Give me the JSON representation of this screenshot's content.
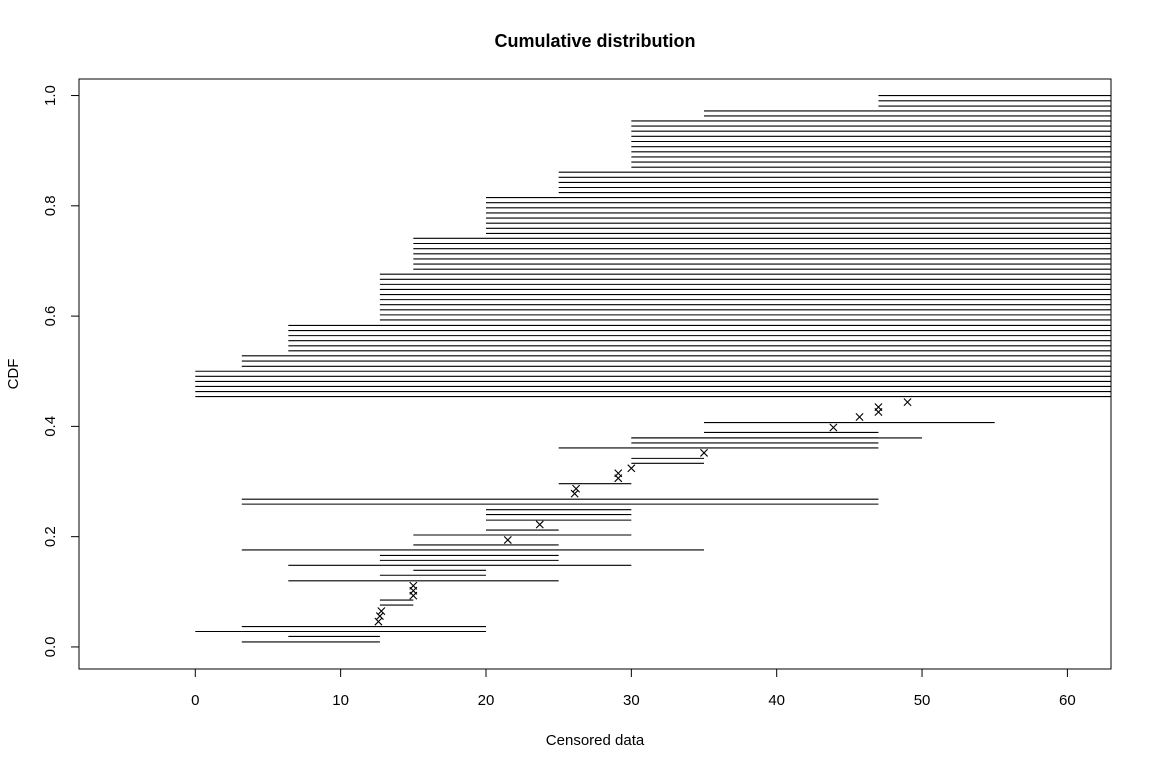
{
  "chart_data": {
    "type": "scatter",
    "title": "Cumulative distribution",
    "xlabel": "Censored data",
    "ylabel": "CDF",
    "xlim": [
      -8,
      63
    ],
    "ylim": [
      -0.04,
      1.03
    ],
    "x_ticks": [
      0,
      10,
      20,
      30,
      40,
      50,
      60
    ],
    "y_ticks": [
      0.0,
      0.2,
      0.4,
      0.6,
      0.8,
      1.0
    ],
    "x_tick_labels": [
      "0",
      "10",
      "20",
      "30",
      "40",
      "50",
      "60"
    ],
    "y_tick_labels": [
      "0.0",
      "0.2",
      "0.4",
      "0.6",
      "0.8",
      "1.0"
    ],
    "grid": false,
    "interval_segments": [
      {
        "x1": 3.2,
        "x2": 12.7,
        "y": 0.009
      },
      {
        "x1": 6.4,
        "x2": 12.7,
        "y": 0.019
      },
      {
        "x1": 0.0,
        "x2": 20.0,
        "y": 0.028
      },
      {
        "x1": 3.2,
        "x2": 20.0,
        "y": 0.037
      },
      {
        "x1": 12.7,
        "x2": 15.0,
        "y": 0.076
      },
      {
        "x1": 12.7,
        "x2": 15.0,
        "y": 0.085
      },
      {
        "x1": 6.4,
        "x2": 25.0,
        "y": 0.12
      },
      {
        "x1": 12.7,
        "x2": 20.0,
        "y": 0.13
      },
      {
        "x1": 15.0,
        "x2": 20.0,
        "y": 0.139
      },
      {
        "x1": 6.4,
        "x2": 30.0,
        "y": 0.148
      },
      {
        "x1": 12.7,
        "x2": 25.0,
        "y": 0.157
      },
      {
        "x1": 12.7,
        "x2": 25.0,
        "y": 0.166
      },
      {
        "x1": 3.2,
        "x2": 35.0,
        "y": 0.176
      },
      {
        "x1": 15.0,
        "x2": 25.0,
        "y": 0.185
      },
      {
        "x1": 15.0,
        "x2": 30.0,
        "y": 0.203
      },
      {
        "x1": 20.0,
        "x2": 25.0,
        "y": 0.212
      },
      {
        "x1": 20.0,
        "x2": 30.0,
        "y": 0.23
      },
      {
        "x1": 20.0,
        "x2": 30.0,
        "y": 0.24
      },
      {
        "x1": 20.0,
        "x2": 30.0,
        "y": 0.249
      },
      {
        "x1": 3.2,
        "x2": 47.0,
        "y": 0.259
      },
      {
        "x1": 3.2,
        "x2": 47.0,
        "y": 0.268
      },
      {
        "x1": 25.0,
        "x2": 30.0,
        "y": 0.296
      },
      {
        "x1": 30.0,
        "x2": 35.0,
        "y": 0.333
      },
      {
        "x1": 30.0,
        "x2": 35.0,
        "y": 0.342
      },
      {
        "x1": 25.0,
        "x2": 47.0,
        "y": 0.361
      },
      {
        "x1": 30.0,
        "x2": 47.0,
        "y": 0.37
      },
      {
        "x1": 30.0,
        "x2": 47.0,
        "y": 0.379
      },
      {
        "x1": 30.0,
        "x2": 50.0,
        "y": 0.379
      },
      {
        "x1": 35.0,
        "x2": 47.0,
        "y": 0.389
      },
      {
        "x1": 35.0,
        "x2": 55.0,
        "y": 0.407
      }
    ],
    "censored_right_steps": [
      {
        "x_start": 0.0,
        "y_from": 0.454,
        "y_to": 0.5,
        "count": 6
      },
      {
        "x_start": 3.2,
        "y_from": 0.509,
        "y_to": 0.528,
        "count": 3
      },
      {
        "x_start": 6.4,
        "y_from": 0.537,
        "y_to": 0.583,
        "count": 6
      },
      {
        "x_start": 12.7,
        "y_from": 0.593,
        "y_to": 0.676,
        "count": 10
      },
      {
        "x_start": 15.0,
        "y_from": 0.685,
        "y_to": 0.741,
        "count": 7
      },
      {
        "x_start": 20.0,
        "y_from": 0.75,
        "y_to": 0.815,
        "count": 8
      },
      {
        "x_start": 25.0,
        "y_from": 0.824,
        "y_to": 0.861,
        "count": 5
      },
      {
        "x_start": 30.0,
        "y_from": 0.87,
        "y_to": 0.954,
        "count": 10
      },
      {
        "x_start": 35.0,
        "y_from": 0.963,
        "y_to": 0.972,
        "count": 2
      },
      {
        "x_start": 47.0,
        "y_from": 0.981,
        "y_to": 1.0,
        "count": 3
      }
    ],
    "points": [
      {
        "x": 12.6,
        "y": 0.046
      },
      {
        "x": 12.7,
        "y": 0.056
      },
      {
        "x": 12.8,
        "y": 0.065
      },
      {
        "x": 15.0,
        "y": 0.093
      },
      {
        "x": 15.0,
        "y": 0.102
      },
      {
        "x": 15.0,
        "y": 0.111
      },
      {
        "x": 21.5,
        "y": 0.194
      },
      {
        "x": 23.7,
        "y": 0.222
      },
      {
        "x": 26.1,
        "y": 0.278
      },
      {
        "x": 26.2,
        "y": 0.287
      },
      {
        "x": 29.1,
        "y": 0.306
      },
      {
        "x": 29.1,
        "y": 0.315
      },
      {
        "x": 30.0,
        "y": 0.324
      },
      {
        "x": 35.0,
        "y": 0.352
      },
      {
        "x": 43.9,
        "y": 0.398
      },
      {
        "x": 45.7,
        "y": 0.417
      },
      {
        "x": 47.0,
        "y": 0.426
      },
      {
        "x": 47.0,
        "y": 0.435
      },
      {
        "x": 49.0,
        "y": 0.444
      }
    ]
  }
}
